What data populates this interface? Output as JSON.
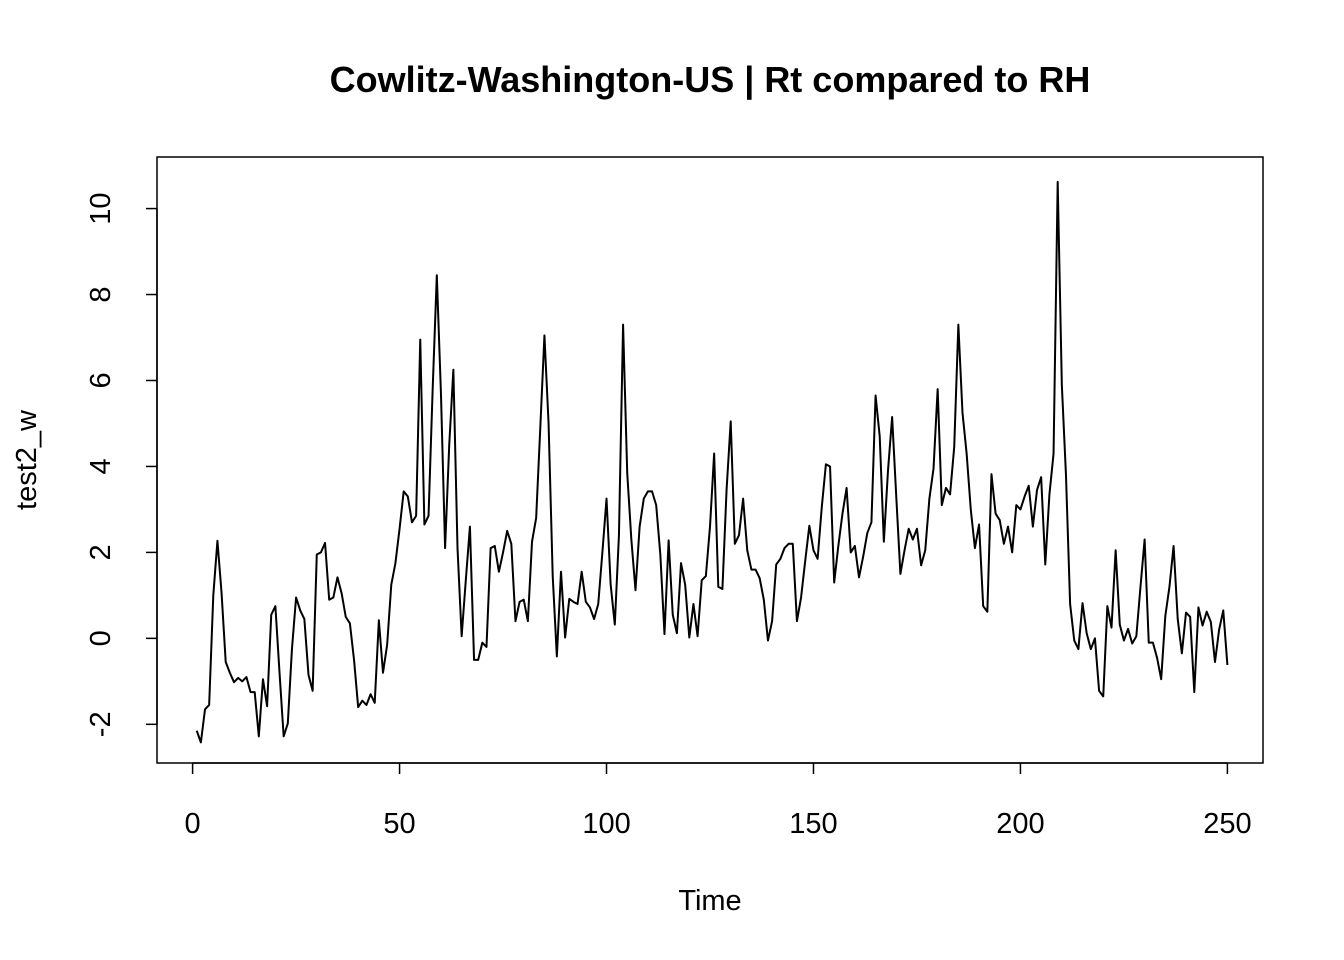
{
  "chart_data": {
    "type": "line",
    "title": "Cowlitz-Washington-US | Rt compared to RH",
    "xlabel": "Time",
    "ylabel": "test2_w",
    "xlim": [
      -8.6,
      258.6
    ],
    "ylim": [
      -2.9,
      11.2
    ],
    "xticks": [
      0,
      50,
      100,
      150,
      200,
      250
    ],
    "xtick_labels": [
      "0",
      "50",
      "100",
      "150",
      "200",
      "250"
    ],
    "yticks": [
      -2,
      0,
      2,
      4,
      6,
      8,
      10
    ],
    "ytick_labels": [
      "-2",
      "0",
      "2",
      "4",
      "6",
      "8",
      "10"
    ],
    "grid": false,
    "line_color": "#000000",
    "series": [
      {
        "x_start": 1,
        "values": [
          -2.15,
          -2.42,
          -1.65,
          -1.55,
          1.0,
          2.27,
          1.05,
          -0.55,
          -0.8,
          -1.02,
          -0.92,
          -1.0,
          -0.9,
          -1.25,
          -1.25,
          -2.28,
          -0.95,
          -1.58,
          0.55,
          0.75,
          -0.8,
          -2.28,
          -1.98,
          -0.25,
          0.95,
          0.65,
          0.45,
          -0.85,
          -1.22,
          1.95,
          2.0,
          2.22,
          0.9,
          0.95,
          1.42,
          1.05,
          0.5,
          0.35,
          -0.5,
          -1.6,
          -1.45,
          -1.55,
          -1.3,
          -1.5,
          0.42,
          -0.8,
          -0.15,
          1.25,
          1.75,
          2.55,
          3.42,
          3.3,
          2.7,
          2.85,
          6.95,
          2.65,
          2.85,
          5.8,
          8.45,
          5.7,
          2.1,
          4.5,
          6.25,
          2.1,
          0.05,
          1.35,
          2.6,
          -0.5,
          -0.5,
          -0.1,
          -0.2,
          2.1,
          2.15,
          1.55,
          2.0,
          2.5,
          2.2,
          0.4,
          0.85,
          0.9,
          0.4,
          2.25,
          2.8,
          4.9,
          7.05,
          5.0,
          1.45,
          -0.42,
          1.55,
          0.02,
          0.92,
          0.85,
          0.8,
          1.55,
          0.85,
          0.72,
          0.45,
          0.8,
          2.0,
          3.25,
          1.25,
          0.32,
          2.4,
          7.3,
          3.85,
          2.3,
          1.12,
          2.6,
          3.25,
          3.42,
          3.42,
          3.1,
          1.95,
          0.1,
          2.28,
          0.55,
          0.12,
          1.75,
          1.25,
          0.02,
          0.8,
          0.05,
          1.35,
          1.45,
          2.6,
          4.3,
          1.2,
          1.15,
          3.45,
          5.05,
          2.2,
          2.4,
          3.25,
          2.05,
          1.6,
          1.6,
          1.4,
          0.9,
          -0.05,
          0.4,
          1.72,
          1.85,
          2.1,
          2.2,
          2.2,
          0.4,
          0.95,
          1.8,
          2.62,
          2.05,
          1.85,
          3.05,
          4.05,
          4.0,
          1.3,
          2.15,
          2.9,
          3.5,
          2.0,
          2.15,
          1.42,
          1.9,
          2.45,
          2.7,
          5.65,
          4.7,
          2.25,
          3.9,
          5.15,
          3.3,
          1.5,
          2.05,
          2.55,
          2.3,
          2.55,
          1.7,
          2.05,
          3.25,
          3.95,
          5.8,
          3.1,
          3.5,
          3.35,
          4.45,
          7.3,
          5.25,
          4.3,
          3.0,
          2.1,
          2.65,
          0.75,
          0.62,
          3.82,
          2.9,
          2.75,
          2.2,
          2.6,
          2.0,
          3.1,
          3.0,
          3.3,
          3.55,
          2.6,
          3.45,
          3.75,
          1.72,
          3.35,
          4.3,
          10.62,
          5.9,
          3.8,
          0.8,
          -0.05,
          -0.25,
          0.82,
          0.12,
          -0.25,
          0.0,
          -1.22,
          -1.35,
          0.75,
          0.25,
          2.05,
          0.32,
          -0.05,
          0.22,
          -0.12,
          0.05,
          1.2,
          2.3,
          -0.1,
          -0.1,
          -0.45,
          -0.95,
          0.52,
          1.2,
          2.15,
          0.45,
          -0.35,
          0.6,
          0.5,
          -1.25,
          0.72,
          0.3,
          0.62,
          0.38,
          -0.55,
          0.2,
          0.65,
          -0.62
        ]
      }
    ]
  }
}
